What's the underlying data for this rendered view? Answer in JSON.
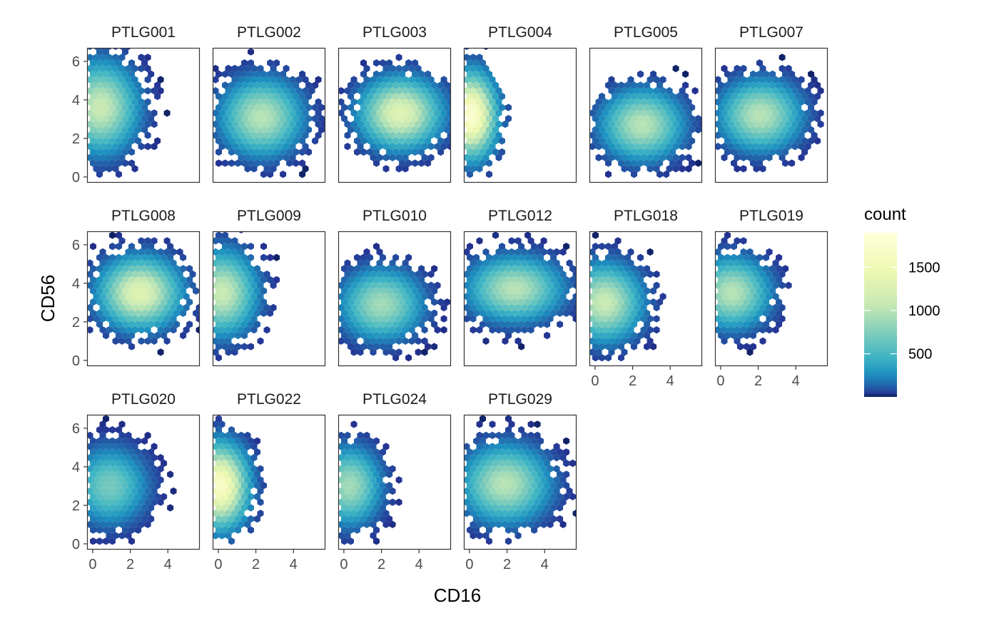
{
  "chart_data": {
    "type": "heatmap",
    "subtype": "faceted hexbin density",
    "xlabel": "CD16",
    "ylabel": "CD56",
    "xlim": [
      -0.3,
      5.7
    ],
    "ylim": [
      -0.3,
      6.7
    ],
    "x_ticks": [
      0,
      2,
      4
    ],
    "y_ticks": [
      0,
      2,
      4,
      6
    ],
    "legend": {
      "title": "count",
      "placement": "right",
      "ticks": [
        500,
        1000,
        1500
      ],
      "min": 1,
      "max": 1900,
      "colors": [
        "#081d58",
        "#253494",
        "#225ea8",
        "#1d91c0",
        "#41b6c4",
        "#7fcdbb",
        "#c7e9b4",
        "#edf8b1",
        "#ffffd9"
      ]
    },
    "grid": false,
    "facets": [
      {
        "name": "PTLG001",
        "cx": 0.4,
        "cy": 3.6,
        "sx": 1.2,
        "sy": 1.4,
        "peak": 1100
      },
      {
        "name": "PTLG002",
        "cx": 2.3,
        "cy": 3.1,
        "sx": 1.3,
        "sy": 1.2,
        "peak": 1000
      },
      {
        "name": "PTLG003",
        "cx": 3.0,
        "cy": 3.3,
        "sx": 1.3,
        "sy": 1.1,
        "peak": 1300
      },
      {
        "name": "PTLG004",
        "cx": 0.1,
        "cy": 3.2,
        "sx": 0.8,
        "sy": 1.3,
        "peak": 1800
      },
      {
        "name": "PTLG005",
        "cx": 2.5,
        "cy": 2.7,
        "sx": 1.3,
        "sy": 1.1,
        "peak": 1000
      },
      {
        "name": "PTLG007",
        "cx": 2.1,
        "cy": 3.2,
        "sx": 1.3,
        "sy": 1.1,
        "peak": 1000
      },
      {
        "name": "PTLG008",
        "cx": 2.5,
        "cy": 3.5,
        "sx": 1.3,
        "sy": 1.1,
        "peak": 1300
      },
      {
        "name": "PTLG009",
        "cx": 0.2,
        "cy": 3.5,
        "sx": 1.1,
        "sy": 1.3,
        "peak": 1100
      },
      {
        "name": "PTLG010",
        "cx": 2.0,
        "cy": 2.9,
        "sx": 1.3,
        "sy": 1.1,
        "peak": 900
      },
      {
        "name": "PTLG012",
        "cx": 2.4,
        "cy": 3.7,
        "sx": 1.5,
        "sy": 1.0,
        "peak": 1000
      },
      {
        "name": "PTLG018",
        "cx": 0.5,
        "cy": 3.0,
        "sx": 1.2,
        "sy": 1.2,
        "peak": 1100
      },
      {
        "name": "PTLG019",
        "cx": 0.6,
        "cy": 3.5,
        "sx": 1.2,
        "sy": 1.1,
        "peak": 1000
      },
      {
        "name": "PTLG020",
        "cx": 0.9,
        "cy": 3.0,
        "sx": 1.2,
        "sy": 1.2,
        "peak": 700
      },
      {
        "name": "PTLG022",
        "cx": 0.1,
        "cy": 3.0,
        "sx": 0.9,
        "sy": 1.3,
        "peak": 1700
      },
      {
        "name": "PTLG024",
        "cx": 0.3,
        "cy": 3.0,
        "sx": 1.0,
        "sy": 1.2,
        "peak": 900
      },
      {
        "name": "PTLG029",
        "cx": 1.9,
        "cy": 3.1,
        "sx": 1.4,
        "sy": 1.2,
        "peak": 1000
      }
    ],
    "x_axis_panels": [
      "PTLG018",
      "PTLG019",
      "PTLG020",
      "PTLG022",
      "PTLG024",
      "PTLG029"
    ],
    "y_axis_panels": [
      "PTLG001",
      "PTLG008",
      "PTLG020"
    ]
  }
}
